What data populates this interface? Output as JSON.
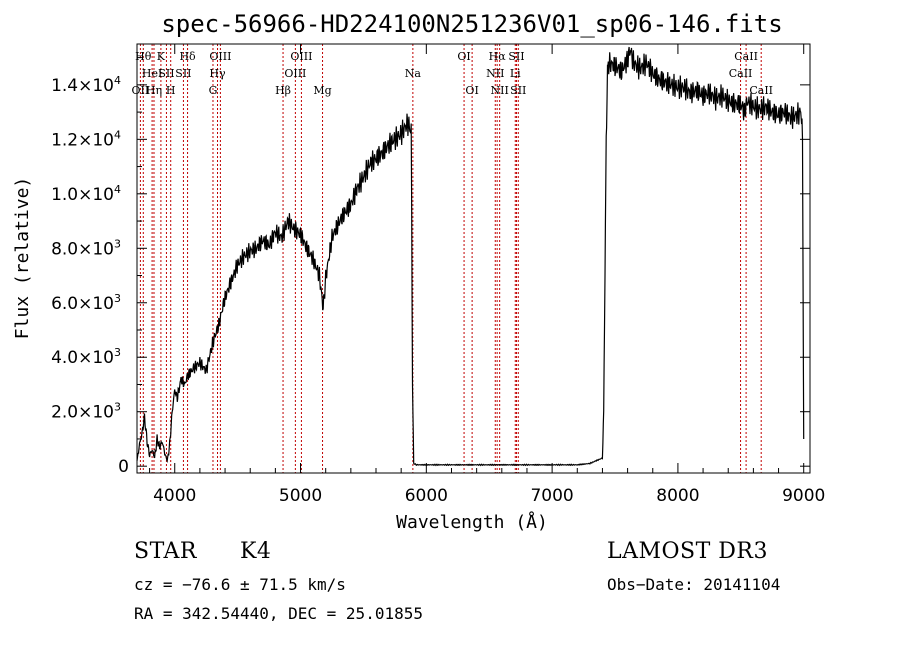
{
  "chart_data": {
    "type": "line",
    "title": "spec-56966-HD224100N251236V01_sp06-146.fits",
    "xlabel": "Wavelength (Å)",
    "ylabel": "Flux (relative)",
    "xlim": [
      3700,
      9050
    ],
    "ylim": [
      -250,
      15500
    ],
    "x_ticks": [
      {
        "value": 4000,
        "label": "4000"
      },
      {
        "value": 5000,
        "label": "5000"
      },
      {
        "value": 6000,
        "label": "6000"
      },
      {
        "value": 7000,
        "label": "7000"
      },
      {
        "value": 8000,
        "label": "8000"
      },
      {
        "value": 9000,
        "label": "9000"
      }
    ],
    "y_ticks": [
      {
        "value": 0,
        "label": "0"
      },
      {
        "value": 2000,
        "label": "2.0×10",
        "exp": "3"
      },
      {
        "value": 4000,
        "label": "4.0×10",
        "exp": "3"
      },
      {
        "value": 6000,
        "label": "6.0×10",
        "exp": "3"
      },
      {
        "value": 8000,
        "label": "8.0×10",
        "exp": "3"
      },
      {
        "value": 10000,
        "label": "1.0×10",
        "exp": "4"
      },
      {
        "value": 12000,
        "label": "1.2×10",
        "exp": "4"
      },
      {
        "value": 14000,
        "label": "1.4×10",
        "exp": "4"
      }
    ],
    "series": [
      {
        "name": "flux",
        "color": "#000000",
        "x": [
          3700,
          3720,
          3740,
          3760,
          3780,
          3800,
          3820,
          3840,
          3860,
          3880,
          3900,
          3920,
          3940,
          3960,
          3980,
          4000,
          4020,
          4050,
          4080,
          4100,
          4150,
          4200,
          4250,
          4300,
          4350,
          4400,
          4450,
          4500,
          4550,
          4600,
          4650,
          4700,
          4750,
          4800,
          4850,
          4900,
          4950,
          5000,
          5050,
          5100,
          5150,
          5180,
          5200,
          5250,
          5300,
          5350,
          5400,
          5450,
          5500,
          5550,
          5600,
          5650,
          5700,
          5750,
          5800,
          5850,
          5880,
          5890,
          5900,
          5920,
          6000,
          6500,
          7000,
          7200,
          7300,
          7350,
          7400,
          7410,
          7420,
          7430,
          7440,
          7450,
          7500,
          7550,
          7600,
          7620,
          7650,
          7700,
          7750,
          7800,
          7850,
          7900,
          7950,
          8000,
          8050,
          8100,
          8150,
          8200,
          8250,
          8300,
          8350,
          8400,
          8450,
          8500,
          8530,
          8550,
          8600,
          8650,
          8700,
          8750,
          8800,
          8850,
          8900,
          8950,
          8980,
          8990,
          9000
        ],
        "y": [
          200,
          800,
          1200,
          1800,
          900,
          400,
          600,
          300,
          1000,
          700,
          900,
          500,
          200,
          800,
          2000,
          2800,
          2500,
          3200,
          3000,
          3300,
          3600,
          3800,
          3500,
          4500,
          5200,
          6200,
          6800,
          7400,
          7700,
          7900,
          8000,
          8300,
          8100,
          8600,
          8400,
          9000,
          8700,
          8500,
          8000,
          7600,
          7000,
          5800,
          6900,
          8400,
          8900,
          9300,
          9600,
          10200,
          10600,
          11100,
          11300,
          11500,
          11800,
          12000,
          12200,
          12600,
          12300,
          3000,
          100,
          50,
          50,
          50,
          50,
          50,
          100,
          200,
          300,
          2000,
          7000,
          12000,
          14500,
          14800,
          14700,
          14500,
          14900,
          15300,
          14800,
          14600,
          14800,
          14400,
          14200,
          14100,
          14000,
          13900,
          13900,
          13700,
          13800,
          13600,
          13700,
          13500,
          13600,
          13400,
          13300,
          13300,
          13000,
          13400,
          13200,
          13100,
          13200,
          13000,
          12900,
          13000,
          12800,
          12900,
          13000,
          12000,
          1000
        ]
      }
    ],
    "lines": [
      {
        "wl": 3750,
        "label": "Hθ",
        "tier": 0
      },
      {
        "wl": 3727,
        "label": "OII",
        "tier": 2
      },
      {
        "wl": 3820,
        "label": "HeI",
        "tier": 1
      },
      {
        "wl": 3835,
        "label": "Hη",
        "tier": 2
      },
      {
        "wl": 3890,
        "label": "K",
        "tier": 0
      },
      {
        "wl": 3934,
        "label": "SII",
        "tier": 1
      },
      {
        "wl": 3968,
        "label": "H",
        "tier": 2
      },
      {
        "wl": 4102,
        "label": "Hδ",
        "tier": 0
      },
      {
        "wl": 4069,
        "label": "SII",
        "tier": 1
      },
      {
        "wl": 4340,
        "label": "Hγ",
        "tier": 1
      },
      {
        "wl": 4363,
        "label": "OIII",
        "tier": 0
      },
      {
        "wl": 4304,
        "label": "G",
        "tier": 2
      },
      {
        "wl": 4861,
        "label": "Hβ",
        "tier": 2
      },
      {
        "wl": 4959,
        "label": "OIII",
        "tier": 1
      },
      {
        "wl": 5007,
        "label": "OIII",
        "tier": 0
      },
      {
        "wl": 5175,
        "label": "Mg",
        "tier": 2
      },
      {
        "wl": 5893,
        "label": "Na",
        "tier": 1
      },
      {
        "wl": 6300,
        "label": "OI",
        "tier": 0
      },
      {
        "wl": 6364,
        "label": "OI",
        "tier": 2
      },
      {
        "wl": 6548,
        "label": "NII",
        "tier": 1
      },
      {
        "wl": 6563,
        "label": "Hα",
        "tier": 0
      },
      {
        "wl": 6583,
        "label": "NII",
        "tier": 2
      },
      {
        "wl": 6707,
        "label": "Li",
        "tier": 1
      },
      {
        "wl": 6717,
        "label": "SII",
        "tier": 0
      },
      {
        "wl": 6731,
        "label": "SII",
        "tier": 2
      },
      {
        "wl": 8498,
        "label": "CaII",
        "tier": 1
      },
      {
        "wl": 8542,
        "label": "CaII",
        "tier": 0
      },
      {
        "wl": 8662,
        "label": "CaII",
        "tier": 2
      }
    ],
    "grid": false,
    "legend": "none"
  },
  "info": {
    "object_type": "STAR",
    "subclass": "K4",
    "survey": "LAMOST DR3",
    "redshift": "cz = −76.6 ± 71.5 km/s",
    "obs_date": "Obs−Date: 20141104",
    "coords": "RA = 342.54440, DEC =  25.01855"
  }
}
